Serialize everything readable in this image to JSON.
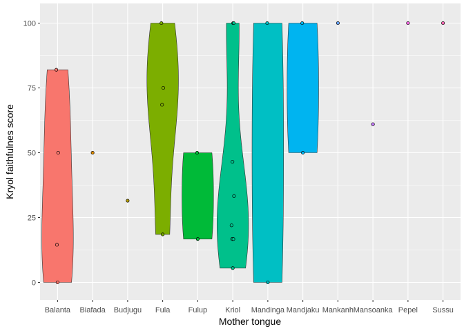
{
  "chart_data": {
    "type": "violin",
    "xlabel": "Mother tongue",
    "ylabel": "Kryol faithfulnes score",
    "ylim": [
      -7,
      106
    ],
    "yticks": [
      0,
      25,
      50,
      75,
      100
    ],
    "grid": true,
    "legend": "none",
    "panel_background": "#ebebeb",
    "categories": [
      "Balanta",
      "Biafada",
      "Budjugu",
      "Fula",
      "Fulup",
      "Kriol",
      "Mandinga",
      "Mandjaku",
      "Mankanh",
      "Mansoanka",
      "Pepel",
      "Sussu"
    ],
    "colors": [
      "#f8766d",
      "#de8c00",
      "#b79f00",
      "#7cae00",
      "#00ba38",
      "#00c08b",
      "#00bfc4",
      "#00b4f0",
      "#619cff",
      "#c77cff",
      "#f564e3",
      "#ff64b0"
    ],
    "groups": [
      {
        "name": "Balanta",
        "points": [
          0,
          14.5,
          50,
          82
        ]
      },
      {
        "name": "Biafada",
        "points": [
          50
        ]
      },
      {
        "name": "Budjugu",
        "points": [
          31.5
        ]
      },
      {
        "name": "Fula",
        "points": [
          18.5,
          68.5,
          75,
          100
        ]
      },
      {
        "name": "Fulup",
        "points": [
          16.7,
          50
        ]
      },
      {
        "name": "Kriol",
        "points": [
          5.5,
          16.7,
          16.7,
          22,
          33.3,
          46.5,
          100,
          100
        ]
      },
      {
        "name": "Mandinga",
        "points": [
          0,
          100
        ]
      },
      {
        "name": "Mandjaku",
        "points": [
          50,
          100
        ]
      },
      {
        "name": "Mankanh",
        "points": [
          100
        ]
      },
      {
        "name": "Mansoanka",
        "points": [
          61
        ]
      },
      {
        "name": "Pepel",
        "points": [
          100
        ]
      },
      {
        "name": "Sussu",
        "points": [
          100
        ]
      }
    ]
  }
}
